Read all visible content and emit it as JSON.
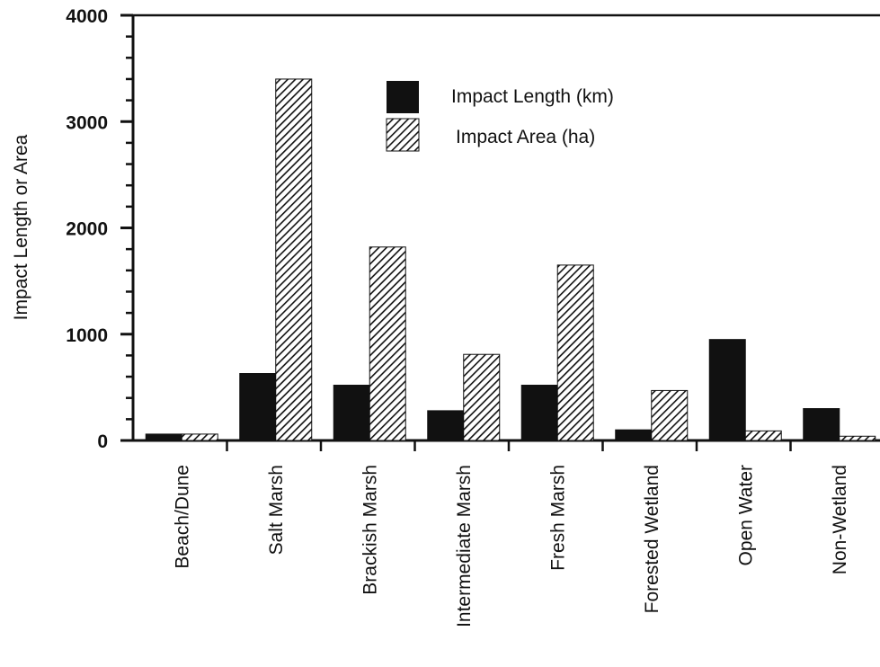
{
  "chart_data": {
    "type": "bar",
    "title": "",
    "xlabel": "",
    "ylabel": "Impact Length or Area",
    "ylim": [
      0,
      4000
    ],
    "yticks": [
      0,
      1000,
      2000,
      3000,
      4000
    ],
    "grid": false,
    "legend_position": "top-center",
    "categories": [
      "Beach/Dune",
      "Salt Marsh",
      "Brackish Marsh",
      "Intermediate Marsh",
      "Fresh Marsh",
      "Forested Wetland",
      "Open Water",
      "Non-Wetland"
    ],
    "series": [
      {
        "name": "Impact Length (km)",
        "style": "solid",
        "color": "#111111",
        "values": [
          60,
          630,
          520,
          280,
          520,
          100,
          950,
          300
        ]
      },
      {
        "name": "Impact Area (ha)",
        "style": "hatched",
        "color": "#111111",
        "values": [
          60,
          3400,
          1820,
          810,
          1650,
          470,
          90,
          40
        ]
      }
    ]
  }
}
